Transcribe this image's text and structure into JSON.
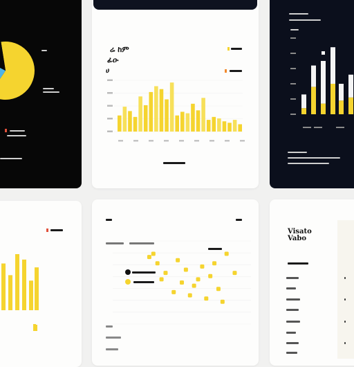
{
  "colors": {
    "accent": "#f5d42f",
    "accent_light": "#f7e05a",
    "dark_card": "#0b0f1c",
    "black_card": "#070707",
    "light_card": "#fdfdfc",
    "red": "#e0503a",
    "blue": "#4fb3e6",
    "white_bar": "#f4f4f4"
  },
  "header_glyphs": {
    "top_center_1": "ሬ ከም",
    "top_center_2": "ፊዑ",
    "top_center_3": "ሀ",
    "bottom_right": "Visato Vabo"
  },
  "chart_data": [
    {
      "type": "pie",
      "values": [
        62,
        23,
        15
      ],
      "colors": [
        "#f5d42f",
        "#4fb3e6",
        "#070707"
      ]
    },
    {
      "type": "bar",
      "values": [
        22,
        34,
        28,
        20,
        48,
        36,
        54,
        62,
        58,
        44,
        67,
        22,
        27,
        25,
        38,
        29,
        46,
        16,
        20,
        18,
        14,
        12,
        16,
        10
      ],
      "ylim": [
        0,
        70
      ]
    },
    {
      "type": "bar",
      "series": [
        {
          "values": [
            8,
            36,
            14,
            40,
            18,
            22
          ]
        },
        {
          "values": [
            18,
            28,
            56,
            48,
            22,
            30
          ]
        }
      ],
      "ylim": [
        0,
        100
      ]
    },
    {
      "type": "bar",
      "values": [
        60,
        45,
        72,
        65,
        38,
        55,
        8
      ],
      "ylim": [
        0,
        80
      ]
    },
    {
      "type": "scatter",
      "series": [
        {
          "name": "yellow",
          "x": [
            9,
            11,
            10,
            13,
            16,
            18,
            21,
            22,
            20,
            25,
            24,
            28,
            26,
            30,
            19,
            23,
            17,
            27,
            12,
            15
          ],
          "y": [
            21,
            19,
            22,
            16,
            20,
            17,
            14,
            18,
            12,
            19,
            15,
            22,
            11,
            16,
            9,
            8,
            13,
            7,
            14,
            10
          ]
        }
      ],
      "xlim": [
        0,
        34
      ],
      "ylim": [
        0,
        26
      ]
    }
  ]
}
